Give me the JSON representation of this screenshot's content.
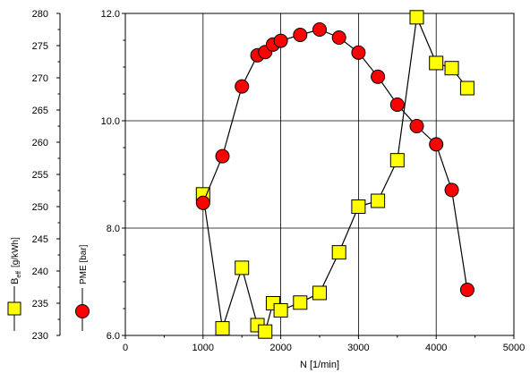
{
  "chart_data": {
    "type": "line",
    "xlabel": "N  [1/min]",
    "xlim": [
      0,
      5000
    ],
    "x_ticks": [
      0,
      1000,
      2000,
      3000,
      4000,
      5000
    ],
    "x_tick_labels": [
      "0",
      "1000",
      "2000",
      "3000",
      "4000",
      "5000"
    ],
    "grid": true,
    "axes": {
      "left_outer": {
        "label_main": "B",
        "label_sub": "eff",
        "label_unit": "[g/kWh]",
        "lim": [
          230,
          280
        ],
        "ticks": [
          230,
          235,
          240,
          245,
          250,
          255,
          260,
          265,
          270,
          275,
          280
        ],
        "tick_labels": [
          "230",
          "235",
          "240",
          "245",
          "250",
          "255",
          "260",
          "265",
          "270",
          "275",
          "280"
        ]
      },
      "left_inner": {
        "label": "PME  [bar]",
        "lim": [
          6.0,
          12.0
        ],
        "ticks": [
          6.0,
          8.0,
          10.0,
          12.0
        ],
        "tick_labels": [
          "6.0",
          "8.0",
          "10.0",
          "12.0"
        ]
      }
    },
    "series": [
      {
        "name": "B eff [g/kWh]",
        "axis": "left_outer",
        "marker": "square",
        "color": "#ffff00",
        "x": [
          1000,
          1250,
          1500,
          1700,
          1800,
          1900,
          2000,
          2250,
          2500,
          2750,
          3000,
          3250,
          3500,
          3750,
          4000,
          4200,
          4400
        ],
        "y": [
          251.9,
          231.1,
          240.5,
          231.6,
          230.6,
          235.0,
          233.9,
          235.1,
          236.6,
          242.9,
          250.0,
          250.9,
          257.2,
          279.4,
          272.3,
          271.5,
          268.4
        ]
      },
      {
        "name": "PME [bar]",
        "axis": "left_inner",
        "marker": "circle",
        "color": "#ff0000",
        "x": [
          1000,
          1250,
          1500,
          1700,
          1800,
          1900,
          2000,
          2250,
          2500,
          2750,
          3000,
          3250,
          3500,
          3750,
          4000,
          4200,
          4400
        ],
        "y": [
          8.47,
          9.34,
          10.64,
          11.22,
          11.28,
          11.42,
          11.49,
          11.6,
          11.7,
          11.55,
          11.27,
          10.82,
          10.3,
          9.9,
          9.56,
          8.71,
          6.85
        ]
      }
    ]
  }
}
